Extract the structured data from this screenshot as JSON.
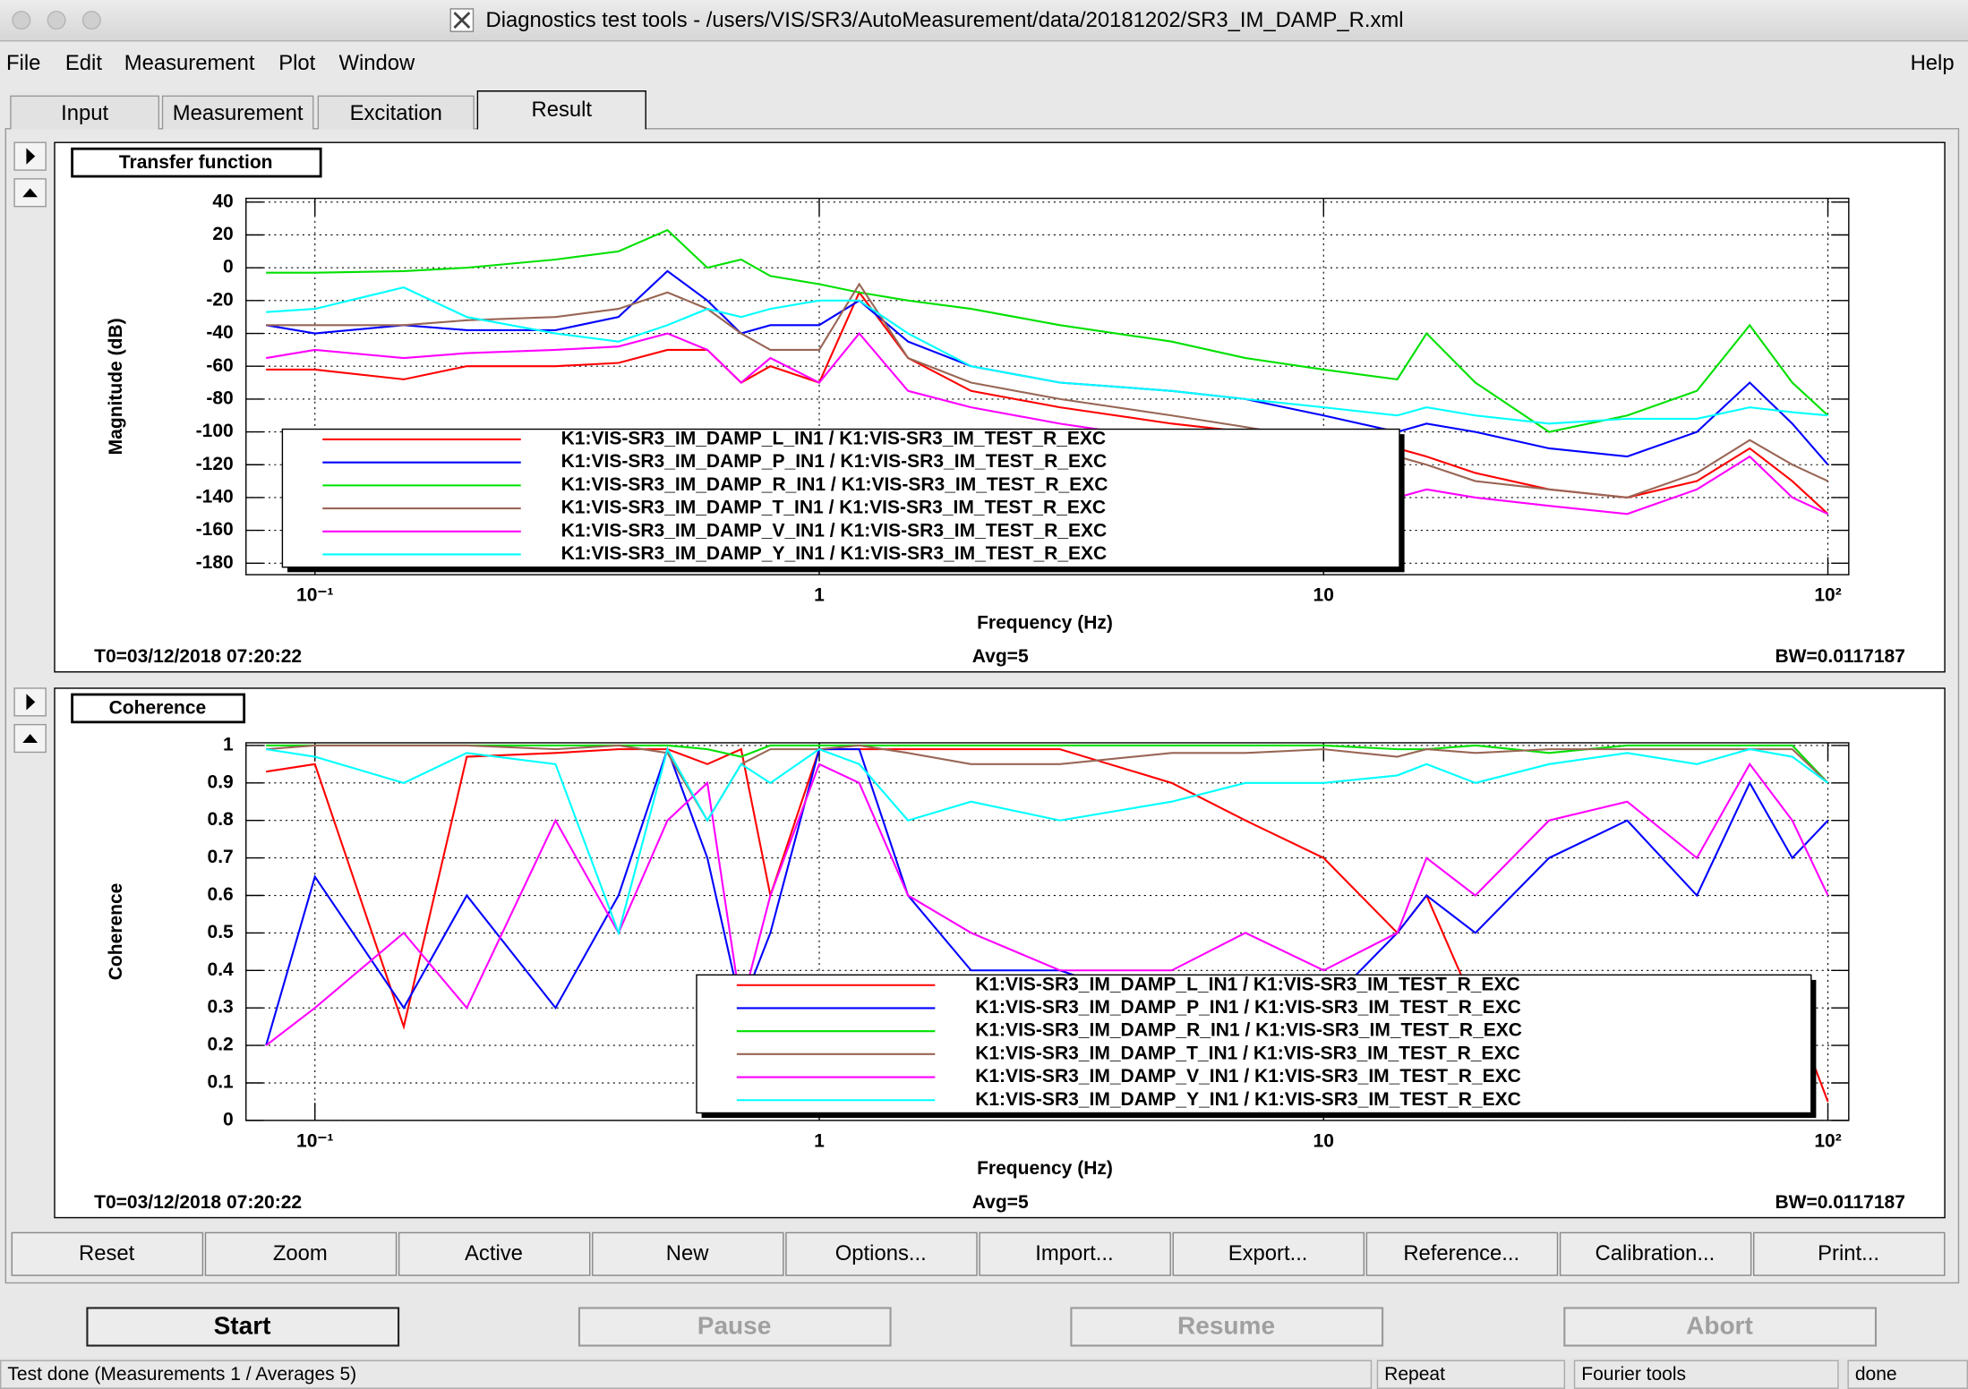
{
  "window": {
    "title": "Diagnostics test tools - /users/VIS/SR3/AutoMeasurement/data/20181202/SR3_IM_DAMP_R.xml"
  },
  "menu": [
    "File",
    "Edit",
    "Measurement",
    "Plot",
    "Window"
  ],
  "help_menu": "Help",
  "tabs": [
    "Input",
    "Measurement",
    "Excitation",
    "Result"
  ],
  "active_tab": 3,
  "chart_data": [
    {
      "type": "line",
      "title": "Transfer function",
      "xlabel": "Frequency (Hz)",
      "ylabel": "Magnitude (dB)",
      "xscale": "log",
      "xlim": [
        0.073,
        110
      ],
      "xticks": [
        {
          "value": 0.1,
          "label": "10⁻¹"
        },
        1,
        10,
        {
          "value": 100,
          "label": "10²"
        }
      ],
      "ylim": [
        -187,
        42.3
      ],
      "yticks": [
        40,
        20,
        0,
        -20,
        -40,
        -60,
        -80,
        -100,
        -120,
        -140,
        -160,
        -180
      ],
      "grid": true,
      "legend": "lower center",
      "x": [
        0.08,
        0.1,
        0.15,
        0.2,
        0.3,
        0.4,
        0.5,
        0.6,
        0.7,
        0.8,
        1,
        1.2,
        1.5,
        2,
        3,
        5,
        7,
        10,
        14,
        16,
        20,
        28,
        40,
        55,
        70,
        85,
        100
      ],
      "series": [
        {
          "name": "K1:VIS-SR3_IM_DAMP_L_IN1 / K1:VIS-SR3_IM_TEST_R_EXC",
          "color": "#ff0000",
          "values": [
            -62,
            -62,
            -68,
            -60,
            -60,
            -58,
            -50,
            -50,
            -70,
            -60,
            -70,
            -15,
            -55,
            -75,
            -85,
            -95,
            -100,
            -105,
            -110,
            -115,
            -125,
            -135,
            -140,
            -130,
            -110,
            -130,
            -150
          ]
        },
        {
          "name": "K1:VIS-SR3_IM_DAMP_P_IN1 / K1:VIS-SR3_IM_TEST_R_EXC",
          "color": "#0000ff",
          "values": [
            -35,
            -40,
            -35,
            -38,
            -38,
            -30,
            -2,
            -20,
            -40,
            -35,
            -35,
            -20,
            -45,
            -60,
            -70,
            -75,
            -80,
            -90,
            -100,
            -95,
            -100,
            -110,
            -115,
            -100,
            -70,
            -95,
            -120
          ]
        },
        {
          "name": "K1:VIS-SR3_IM_DAMP_R_IN1 / K1:VIS-SR3_IM_TEST_R_EXC",
          "color": "#00e000",
          "values": [
            -3,
            -3,
            -2,
            0,
            5,
            10,
            23,
            0,
            5,
            -5,
            -10,
            -15,
            -20,
            -25,
            -35,
            -45,
            -55,
            -62,
            -68,
            -40,
            -70,
            -100,
            -90,
            -75,
            -35,
            -70,
            -90
          ]
        },
        {
          "name": "K1:VIS-SR3_IM_DAMP_T_IN1 / K1:VIS-SR3_IM_TEST_R_EXC",
          "color": "#996655",
          "values": [
            -35,
            -35,
            -35,
            -32,
            -30,
            -25,
            -15,
            -25,
            -40,
            -50,
            -50,
            -10,
            -55,
            -70,
            -80,
            -90,
            -97,
            -105,
            -115,
            -120,
            -130,
            -135,
            -140,
            -125,
            -105,
            -120,
            -130
          ]
        },
        {
          "name": "K1:VIS-SR3_IM_DAMP_V_IN1 / K1:VIS-SR3_IM_TEST_R_EXC",
          "color": "#ff00ff",
          "values": [
            -55,
            -50,
            -55,
            -52,
            -50,
            -48,
            -40,
            -50,
            -70,
            -55,
            -70,
            -40,
            -75,
            -85,
            -95,
            -105,
            -115,
            -125,
            -140,
            -135,
            -140,
            -145,
            -150,
            -135,
            -115,
            -140,
            -150
          ]
        },
        {
          "name": "K1:VIS-SR3_IM_DAMP_Y_IN1 / K1:VIS-SR3_IM_TEST_R_EXC",
          "color": "#00ffff",
          "values": [
            -27,
            -25,
            -12,
            -30,
            -40,
            -45,
            -35,
            -25,
            -30,
            -25,
            -20,
            -20,
            -40,
            -60,
            -70,
            -75,
            -80,
            -85,
            -90,
            -85,
            -90,
            -95,
            -92,
            -92,
            -85,
            -88,
            -90
          ]
        }
      ],
      "annotations": [
        "T0=03/12/2018 07:20:22",
        "Avg=5",
        "BW=0.0117187"
      ]
    },
    {
      "type": "line",
      "title": "Coherence",
      "xlabel": "Frequency (Hz)",
      "ylabel": "Coherence",
      "xscale": "log",
      "xlim": [
        0.073,
        110
      ],
      "xticks": [
        {
          "value": 0.1,
          "label": "10⁻¹"
        },
        1,
        10,
        {
          "value": 100,
          "label": "10²"
        }
      ],
      "ylim": [
        0,
        1.007
      ],
      "yticks": [
        1,
        0.9,
        0.8,
        0.7,
        0.6,
        0.5,
        0.4,
        0.3,
        0.2,
        0.1,
        0
      ],
      "grid": true,
      "legend": "lower center",
      "x": [
        0.08,
        0.1,
        0.15,
        0.2,
        0.3,
        0.4,
        0.5,
        0.6,
        0.7,
        0.8,
        1,
        1.2,
        1.5,
        2,
        3,
        5,
        7,
        10,
        14,
        16,
        20,
        28,
        40,
        55,
        70,
        85,
        100
      ],
      "series": [
        {
          "name": "K1:VIS-SR3_IM_DAMP_L_IN1 / K1:VIS-SR3_IM_TEST_R_EXC",
          "color": "#ff0000",
          "values": [
            0.93,
            0.95,
            0.25,
            0.97,
            0.98,
            0.99,
            0.99,
            0.95,
            0.99,
            0.6,
            0.99,
            0.99,
            0.99,
            0.99,
            0.99,
            0.9,
            0.8,
            0.7,
            0.5,
            0.6,
            0.3,
            0.1,
            0.1,
            0.1,
            0.1,
            0.3,
            0.05
          ]
        },
        {
          "name": "K1:VIS-SR3_IM_DAMP_P_IN1 / K1:VIS-SR3_IM_TEST_R_EXC",
          "color": "#0000ff",
          "values": [
            0.2,
            0.65,
            0.3,
            0.6,
            0.3,
            0.6,
            0.99,
            0.7,
            0.3,
            0.5,
            0.99,
            0.99,
            0.6,
            0.4,
            0.4,
            0.3,
            0.3,
            0.3,
            0.5,
            0.6,
            0.5,
            0.7,
            0.8,
            0.6,
            0.9,
            0.7,
            0.8
          ]
        },
        {
          "name": "K1:VIS-SR3_IM_DAMP_R_IN1 / K1:VIS-SR3_IM_TEST_R_EXC",
          "color": "#00e000",
          "values": [
            1,
            1,
            1,
            1,
            1,
            1,
            1,
            0.99,
            0.97,
            1,
            1,
            1,
            1,
            1,
            1,
            1,
            1,
            1,
            0.99,
            0.99,
            1,
            0.98,
            1,
            1,
            1,
            1,
            0.9
          ]
        },
        {
          "name": "K1:VIS-SR3_IM_DAMP_T_IN1 / K1:VIS-SR3_IM_TEST_R_EXC",
          "color": "#996655",
          "values": [
            0.99,
            1,
            1,
            1,
            0.99,
            1,
            0.98,
            0.8,
            0.95,
            0.99,
            0.99,
            1,
            0.98,
            0.95,
            0.95,
            0.98,
            0.98,
            0.99,
            0.97,
            0.99,
            0.98,
            0.99,
            0.99,
            0.99,
            0.99,
            0.99,
            0.9
          ]
        },
        {
          "name": "K1:VIS-SR3_IM_DAMP_V_IN1 / K1:VIS-SR3_IM_TEST_R_EXC",
          "color": "#ff00ff",
          "values": [
            0.2,
            0.3,
            0.5,
            0.3,
            0.8,
            0.5,
            0.8,
            0.9,
            0.3,
            0.6,
            0.95,
            0.9,
            0.6,
            0.5,
            0.4,
            0.4,
            0.5,
            0.4,
            0.5,
            0.7,
            0.6,
            0.8,
            0.85,
            0.7,
            0.95,
            0.8,
            0.6
          ]
        },
        {
          "name": "K1:VIS-SR3_IM_DAMP_Y_IN1 / K1:VIS-SR3_IM_TEST_R_EXC",
          "color": "#00ffff",
          "values": [
            0.99,
            0.97,
            0.9,
            0.98,
            0.95,
            0.5,
            0.99,
            0.8,
            0.95,
            0.9,
            0.99,
            0.95,
            0.8,
            0.85,
            0.8,
            0.85,
            0.9,
            0.9,
            0.92,
            0.95,
            0.9,
            0.95,
            0.98,
            0.95,
            0.99,
            0.97,
            0.9
          ]
        }
      ],
      "annotations": [
        "T0=03/12/2018 07:20:22",
        "Avg=5",
        "BW=0.0117187"
      ]
    }
  ],
  "buttons": [
    "Reset",
    "Zoom",
    "Active",
    "New",
    "Options...",
    "Import...",
    "Export...",
    "Reference...",
    "Calibration...",
    "Print..."
  ],
  "run_buttons": [
    {
      "label": "Start",
      "enabled": true
    },
    {
      "label": "Pause",
      "enabled": false
    },
    {
      "label": "Resume",
      "enabled": false
    },
    {
      "label": "Abort",
      "enabled": false
    }
  ],
  "status": [
    "Test done (Measurements 1 / Averages 5)",
    "Repeat",
    "Fourier tools",
    "done"
  ]
}
